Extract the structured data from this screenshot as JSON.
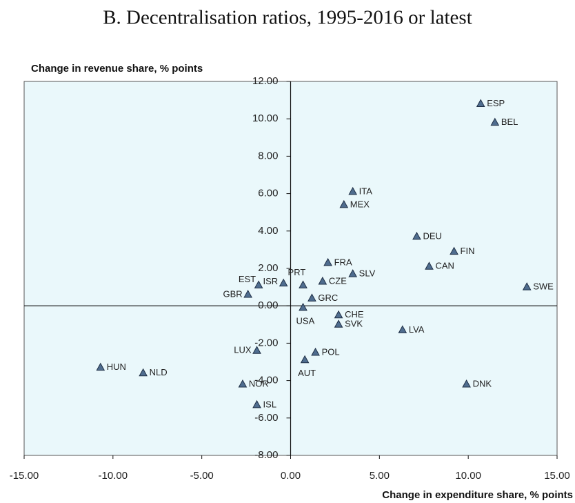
{
  "chart_data": {
    "type": "scatter",
    "title": "B. Decentralisation ratios, 1995-2016 or latest",
    "y_label": "Change in revenue share, % points",
    "x_label": "Change in expenditure share, % points",
    "labels": [
      "ESP",
      "BEL",
      "ITA",
      "MEX",
      "DEU",
      "FIN",
      "CAN",
      "FRA",
      "SLV",
      "PRT",
      "CZE",
      "ISR",
      "EST",
      "GBR",
      "GRC",
      "USA",
      "SWE",
      "CHE",
      "SVK",
      "LVA",
      "LUX",
      "POL",
      "AUT",
      "HUN",
      "NLD",
      "NOR",
      "DNK",
      "ISL"
    ],
    "x": [
      10.7,
      11.5,
      3.5,
      3.0,
      7.1,
      9.2,
      7.8,
      2.1,
      3.5,
      0.7,
      1.8,
      -0.4,
      -1.8,
      -2.4,
      1.2,
      0.7,
      13.3,
      2.7,
      2.7,
      6.3,
      -1.9,
      1.4,
      0.8,
      -10.7,
      -8.3,
      -2.7,
      9.9,
      -1.9
    ],
    "y": [
      10.8,
      9.8,
      6.1,
      5.4,
      3.7,
      2.9,
      2.1,
      2.3,
      1.7,
      1.1,
      1.3,
      1.2,
      1.1,
      0.6,
      0.4,
      -0.1,
      1.0,
      -0.5,
      -1.0,
      -1.3,
      -2.4,
      -2.5,
      -2.9,
      -3.3,
      -3.6,
      -4.2,
      -4.2,
      -5.3
    ],
    "color": "#4f6d8f",
    "xlim": [
      -15,
      15
    ],
    "ylim": [
      -8,
      12
    ],
    "xticks": [
      {
        "value": -15,
        "label": "-15.00"
      },
      {
        "value": -10,
        "label": "-10.00"
      },
      {
        "value": -5,
        "label": "-5.00"
      },
      {
        "value": 0,
        "label": "0.00"
      },
      {
        "value": 5,
        "label": "5.00"
      },
      {
        "value": 10,
        "label": "10.00"
      },
      {
        "value": 15,
        "label": "15.00"
      }
    ],
    "yticks": [
      {
        "value": -8,
        "label": "-8.00"
      },
      {
        "value": -6,
        "label": "-6.00"
      },
      {
        "value": -4,
        "label": "-4.00"
      },
      {
        "value": -2,
        "label": "-2.00"
      },
      {
        "value": 0,
        "label": "0.00"
      },
      {
        "value": 2,
        "label": "2.00"
      },
      {
        "value": 4,
        "label": "4.00"
      },
      {
        "value": 6,
        "label": "6.00"
      },
      {
        "value": 8,
        "label": "8.00"
      },
      {
        "value": 10,
        "label": "10.00"
      },
      {
        "value": 12,
        "label": "12.00"
      }
    ]
  }
}
